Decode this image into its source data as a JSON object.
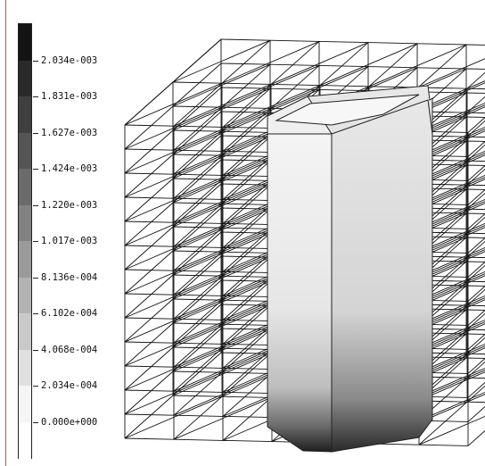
{
  "legend": {
    "labels": [
      "2.034e-003",
      "1.831e-003",
      "1.627e-003",
      "1.424e-003",
      "1.220e-003",
      "1.017e-003",
      "8.136e-004",
      "6.102e-004",
      "4.068e-004",
      "2.034e-004",
      "0.000e+000"
    ],
    "colors": [
      "#141414",
      "#2a2a2a",
      "#3f3f3f",
      "#555555",
      "#6b6b6b",
      "#828282",
      "#9a9a9a",
      "#b2b2b2",
      "#c9c9c9",
      "#e0e0e0",
      "#f5f5f5",
      "#ffffff"
    ]
  }
}
